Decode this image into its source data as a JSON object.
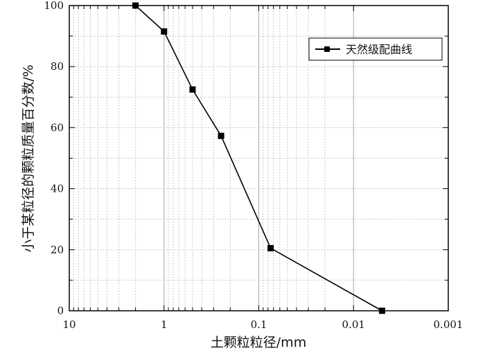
{
  "chart_data": {
    "type": "line",
    "xscale": "log",
    "x_reversed": true,
    "xlim": [
      10,
      0.001
    ],
    "ylim": [
      0,
      100
    ],
    "xlabel": "土颗粒粒径/mm",
    "ylabel": "小于某粒径的颗粒质量百分数/%",
    "x_ticks": [
      10,
      1,
      0.1,
      0.01,
      0.001
    ],
    "x_tick_labels": [
      "10",
      "1",
      "0.1",
      "0.01",
      "0.001"
    ],
    "y_ticks": [
      0,
      20,
      40,
      60,
      80,
      100
    ],
    "y_tick_labels": [
      "0",
      "20",
      "40",
      "60",
      "80",
      "100"
    ],
    "grid": true,
    "legend_position": "top-right",
    "series": [
      {
        "name": "天然级配曲线",
        "color": "#000000",
        "marker": "square",
        "x": [
          2,
          1,
          0.5,
          0.25,
          0.075,
          0.005
        ],
        "y": [
          100,
          91.5,
          72.5,
          57.3,
          20.5,
          0
        ]
      }
    ]
  }
}
